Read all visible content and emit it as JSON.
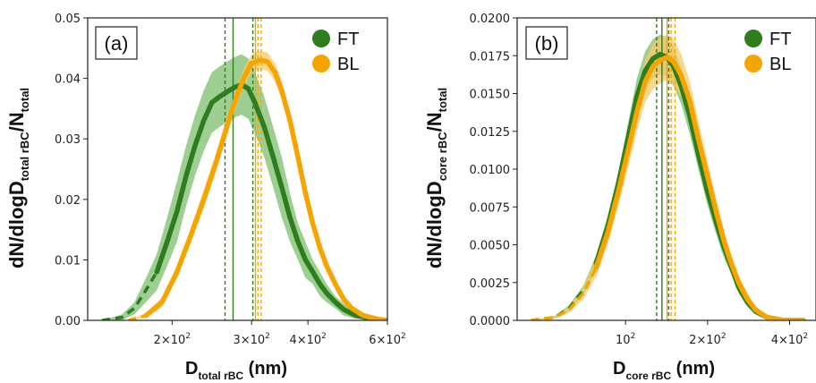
{
  "chart_data": [
    {
      "type": "line",
      "panel_label": "(a)",
      "ylabel": "dN/dlogD_total rBC/N_total",
      "ylabel_parts": {
        "main": "dN/dlogD",
        "sub": "total rBC",
        "slash": "/N",
        "sub2": "total"
      },
      "xlabel_parts": {
        "main": "D",
        "sub": "total rBC",
        "rest": " (nm)"
      },
      "xscale": "log",
      "xlim": [
        130,
        600
      ],
      "ylim": [
        0,
        0.05
      ],
      "yticks": [
        "0.00",
        "0.01",
        "0.02",
        "0.03",
        "0.04",
        "0.05"
      ],
      "ytick_values": [
        0,
        0.01,
        0.02,
        0.03,
        0.04,
        0.05
      ],
      "xticks": [
        {
          "value": 200,
          "base": "2×10",
          "exp": "2"
        },
        {
          "value": 300,
          "base": "3×10",
          "exp": "2"
        },
        {
          "value": 400,
          "base": "4×10",
          "exp": "2"
        },
        {
          "value": 600,
          "base": "6×10",
          "exp": "2"
        }
      ],
      "legend": {
        "placement": "top-right",
        "entries": [
          "FT",
          "BL"
        ]
      },
      "series": [
        {
          "name": "FT",
          "color": "#2e7d1e",
          "band_color": "#7dbf6e",
          "dashed_until": 185,
          "points": [
            [
              140,
              0.0
            ],
            [
              155,
              0.0005
            ],
            [
              165,
              0.002
            ],
            [
              175,
              0.005
            ],
            [
              185,
              0.008
            ],
            [
              195,
              0.013
            ],
            [
              205,
              0.018
            ],
            [
              215,
              0.024
            ],
            [
              225,
              0.029
            ],
            [
              235,
              0.033
            ],
            [
              245,
              0.036
            ],
            [
              255,
              0.037
            ],
            [
              265,
              0.0378
            ],
            [
              275,
              0.0385
            ],
            [
              285,
              0.039
            ],
            [
              295,
              0.0383
            ],
            [
              305,
              0.036
            ],
            [
              320,
              0.032
            ],
            [
              335,
              0.027
            ],
            [
              350,
              0.022
            ],
            [
              365,
              0.017
            ],
            [
              380,
              0.013
            ],
            [
              395,
              0.01
            ],
            [
              410,
              0.008
            ],
            [
              425,
              0.006
            ],
            [
              440,
              0.0045
            ],
            [
              460,
              0.003
            ],
            [
              480,
              0.0018
            ],
            [
              510,
              0.0008
            ],
            [
              560,
              0.0002
            ],
            [
              600,
              0.0
            ]
          ],
          "band_halfwidth": [
            0,
            0.0005,
            0.001,
            0.002,
            0.003,
            0.004,
            0.005,
            0.005,
            0.005,
            0.005,
            0.005,
            0.005,
            0.005,
            0.005,
            0.005,
            0.005,
            0.005,
            0.005,
            0.005,
            0.005,
            0.004,
            0.003,
            0.003,
            0.002,
            0.002,
            0.0015,
            0.001,
            0.001,
            0.0005,
            0,
            0
          ],
          "vlines": [
            {
              "x": 262,
              "style": "dashed"
            },
            {
              "x": 273,
              "style": "solid"
            },
            {
              "x": 302,
              "style": "dashed"
            }
          ]
        },
        {
          "name": "BL",
          "color": "#f5a400",
          "band_color": "#f8c968",
          "dashed_until": 175,
          "points": [
            [
              160,
              0.0
            ],
            [
              175,
              0.0008
            ],
            [
              190,
              0.003
            ],
            [
              205,
              0.008
            ],
            [
              220,
              0.014
            ],
            [
              235,
              0.02
            ],
            [
              250,
              0.026
            ],
            [
              262,
              0.031
            ],
            [
              275,
              0.036
            ],
            [
              288,
              0.04
            ],
            [
              300,
              0.0425
            ],
            [
              312,
              0.043
            ],
            [
              325,
              0.0428
            ],
            [
              338,
              0.041
            ],
            [
              350,
              0.038
            ],
            [
              365,
              0.033
            ],
            [
              380,
              0.027
            ],
            [
              395,
              0.021
            ],
            [
              410,
              0.016
            ],
            [
              425,
              0.012
            ],
            [
              440,
              0.009
            ],
            [
              460,
              0.006
            ],
            [
              480,
              0.0035
            ],
            [
              500,
              0.002
            ],
            [
              530,
              0.0008
            ],
            [
              570,
              0.0002
            ],
            [
              600,
              0.0
            ]
          ],
          "band_halfwidth": [
            0,
            0.0004,
            0.0008,
            0.001,
            0.0012,
            0.0015,
            0.0015,
            0.0015,
            0.0015,
            0.0015,
            0.0015,
            0.0015,
            0.0015,
            0.0015,
            0.0015,
            0.0015,
            0.0015,
            0.0015,
            0.0012,
            0.001,
            0.001,
            0.0008,
            0.0006,
            0.0005,
            0.0003,
            0,
            0
          ],
          "vlines": [
            {
              "x": 306,
              "style": "solid"
            },
            {
              "x": 310,
              "style": "dashed"
            },
            {
              "x": 315,
              "style": "dashed"
            }
          ]
        }
      ]
    },
    {
      "type": "line",
      "panel_label": "(b)",
      "ylabel": "dN/dlogD_core rBC/N_total",
      "ylabel_parts": {
        "main": "dN/dlogD",
        "sub": "core rBC",
        "slash": "/N",
        "sub2": "total"
      },
      "xlabel_parts": {
        "main": "D",
        "sub": "core rBC",
        "rest": " (nm)"
      },
      "xscale": "log",
      "xlim": [
        40,
        500
      ],
      "ylim": [
        0,
        0.02
      ],
      "yticks": [
        "0.0000",
        "0.0025",
        "0.0050",
        "0.0075",
        "0.0100",
        "0.0125",
        "0.0150",
        "0.0175",
        "0.0200"
      ],
      "ytick_values": [
        0,
        0.0025,
        0.005,
        0.0075,
        0.01,
        0.0125,
        0.015,
        0.0175,
        0.02
      ],
      "xticks": [
        {
          "value": 100,
          "base": "10",
          "exp": "2"
        },
        {
          "value": 200,
          "base": "2×10",
          "exp": "2"
        },
        {
          "value": 400,
          "base": "4×10",
          "exp": "2"
        }
      ],
      "legend": {
        "placement": "top-right",
        "entries": [
          "FT",
          "BL"
        ]
      },
      "series": [
        {
          "name": "FT",
          "color": "#2e7d1e",
          "band_color": "#7dbf6e",
          "dashed_until": 75,
          "points": [
            [
              45,
              0.0
            ],
            [
              55,
              0.0002
            ],
            [
              62,
              0.0008
            ],
            [
              70,
              0.002
            ],
            [
              78,
              0.0038
            ],
            [
              86,
              0.0062
            ],
            [
              94,
              0.009
            ],
            [
              102,
              0.012
            ],
            [
              110,
              0.0148
            ],
            [
              118,
              0.0165
            ],
            [
              126,
              0.0173
            ],
            [
              134,
              0.0176
            ],
            [
              142,
              0.0174
            ],
            [
              150,
              0.0168
            ],
            [
              160,
              0.0155
            ],
            [
              172,
              0.0135
            ],
            [
              185,
              0.011
            ],
            [
              200,
              0.0085
            ],
            [
              215,
              0.0065
            ],
            [
              230,
              0.0048
            ],
            [
              245,
              0.0035
            ],
            [
              260,
              0.0022
            ],
            [
              280,
              0.0012
            ],
            [
              300,
              0.0006
            ],
            [
              330,
              0.0002
            ],
            [
              380,
              0.0
            ],
            [
              450,
              0.0
            ]
          ],
          "band_halfwidth": [
            0,
            0.0001,
            0.0002,
            0.0003,
            0.0005,
            0.0007,
            0.0008,
            0.001,
            0.0012,
            0.0013,
            0.0013,
            0.0013,
            0.0013,
            0.0013,
            0.0012,
            0.0012,
            0.001,
            0.0009,
            0.0008,
            0.0007,
            0.0005,
            0.0004,
            0.0003,
            0.0002,
            0.0001,
            0,
            0
          ],
          "vlines": [
            {
              "x": 130,
              "style": "dashed"
            },
            {
              "x": 136,
              "style": "solid"
            },
            {
              "x": 144,
              "style": "dashed"
            }
          ]
        },
        {
          "name": "BL",
          "color": "#f5a400",
          "band_color": "#f8c968",
          "dashed_until": 78,
          "points": [
            [
              45,
              0.0
            ],
            [
              55,
              0.0002
            ],
            [
              62,
              0.0007
            ],
            [
              70,
              0.0018
            ],
            [
              78,
              0.0035
            ],
            [
              86,
              0.0058
            ],
            [
              94,
              0.0085
            ],
            [
              102,
              0.0112
            ],
            [
              110,
              0.0138
            ],
            [
              118,
              0.0158
            ],
            [
              126,
              0.0168
            ],
            [
              134,
              0.0172
            ],
            [
              142,
              0.0174
            ],
            [
              150,
              0.0171
            ],
            [
              160,
              0.0162
            ],
            [
              172,
              0.0145
            ],
            [
              185,
              0.012
            ],
            [
              200,
              0.0095
            ],
            [
              215,
              0.0072
            ],
            [
              230,
              0.0052
            ],
            [
              245,
              0.0037
            ],
            [
              260,
              0.0025
            ],
            [
              280,
              0.0014
            ],
            [
              300,
              0.0007
            ],
            [
              330,
              0.0002
            ],
            [
              380,
              0.0
            ],
            [
              450,
              0.0
            ]
          ],
          "band_halfwidth": [
            0,
            0.0001,
            0.0002,
            0.0004,
            0.0006,
            0.0008,
            0.001,
            0.0012,
            0.0013,
            0.0014,
            0.0015,
            0.0015,
            0.0015,
            0.0015,
            0.0014,
            0.0013,
            0.0012,
            0.001,
            0.0009,
            0.0007,
            0.0006,
            0.0005,
            0.0004,
            0.0002,
            0.0001,
            0,
            0
          ],
          "vlines": [
            {
              "x": 142,
              "style": "solid"
            },
            {
              "x": 147,
              "style": "dashed"
            },
            {
              "x": 152,
              "style": "dashed"
            }
          ]
        }
      ]
    }
  ]
}
